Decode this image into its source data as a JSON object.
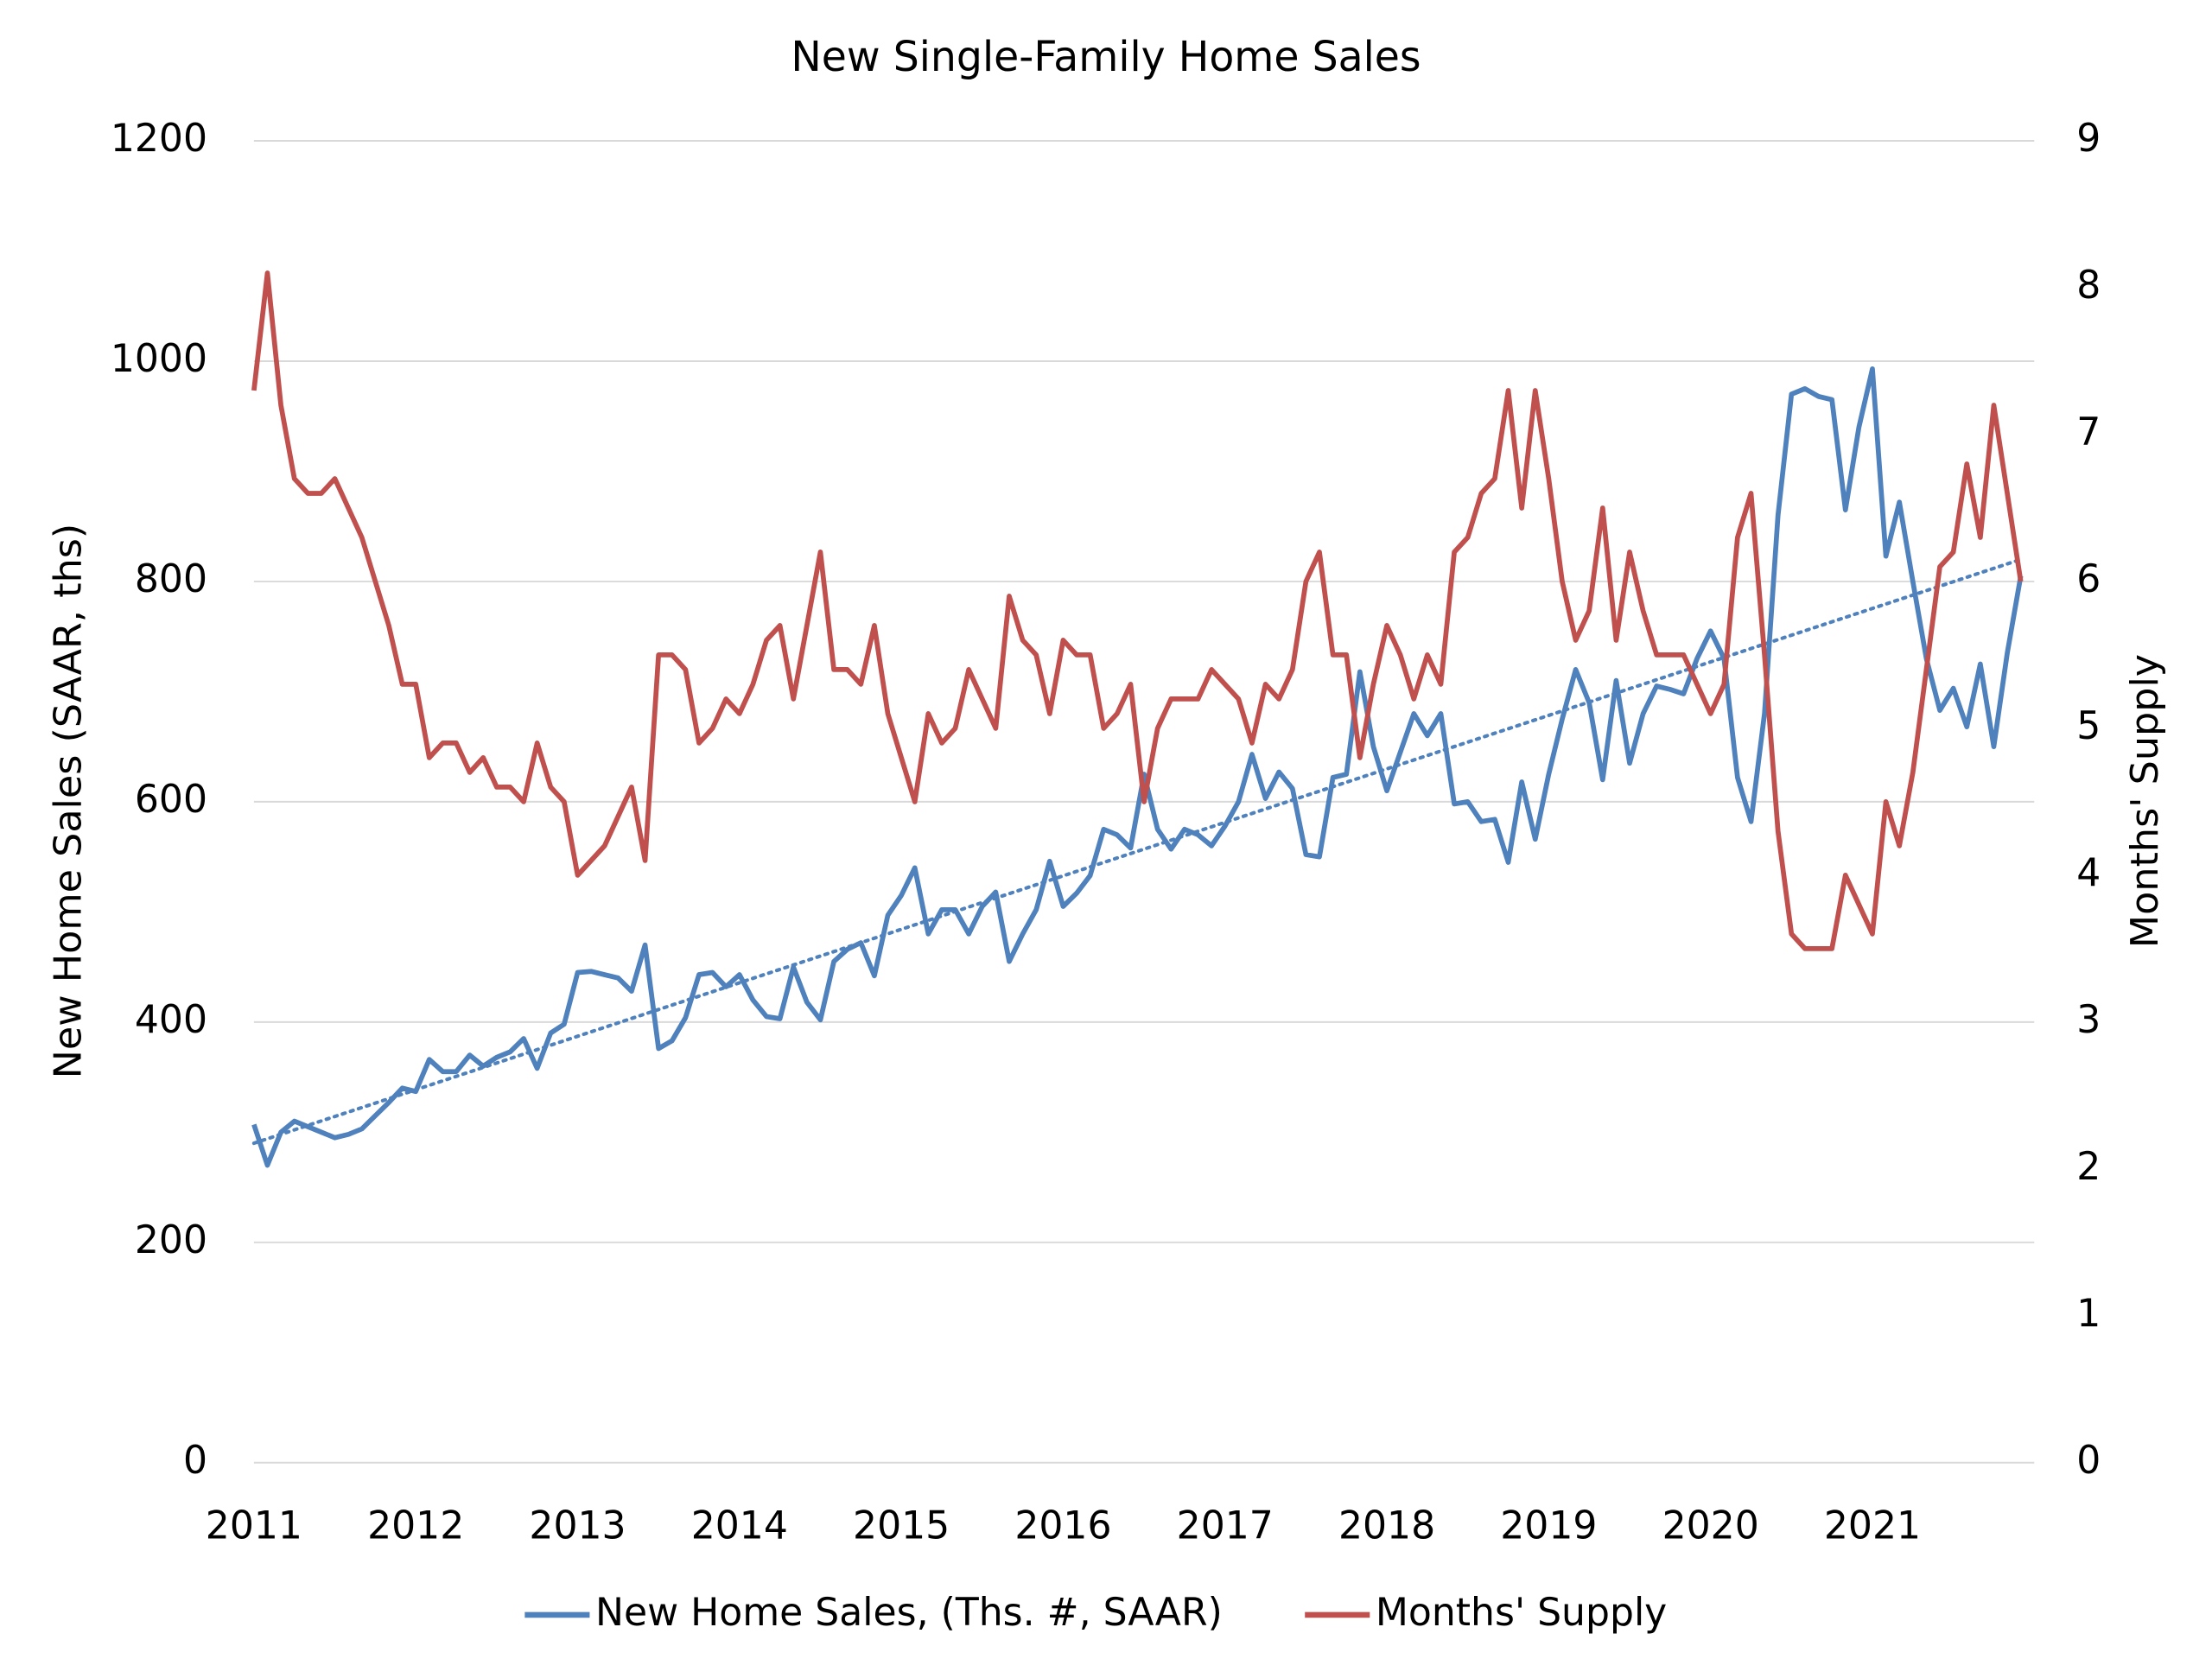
{
  "chart_data": {
    "type": "line",
    "title": "New Single-Family Home Sales",
    "ylabel": "New Home Sales (SAAR, ths)",
    "y2label": "Months' Supply",
    "categories": [
      "2011",
      null,
      null,
      null,
      null,
      null,
      null,
      null,
      null,
      null,
      null,
      null,
      "2012",
      null,
      null,
      null,
      null,
      null,
      null,
      null,
      null,
      null,
      null,
      null,
      "2013",
      null,
      null,
      null,
      null,
      null,
      null,
      null,
      null,
      null,
      null,
      null,
      "2014",
      null,
      null,
      null,
      null,
      null,
      null,
      null,
      null,
      null,
      null,
      null,
      "2015",
      null,
      null,
      null,
      null,
      null,
      null,
      null,
      null,
      null,
      null,
      null,
      "2016",
      null,
      null,
      null,
      null,
      null,
      null,
      null,
      null,
      null,
      null,
      null,
      "2017",
      null,
      null,
      null,
      null,
      null,
      null,
      null,
      null,
      null,
      null,
      null,
      "2018",
      null,
      null,
      null,
      null,
      null,
      null,
      null,
      null,
      null,
      null,
      null,
      "2019",
      null,
      null,
      null,
      null,
      null,
      null,
      null,
      null,
      null,
      null,
      null,
      "2020",
      null,
      null,
      null,
      null,
      null,
      null,
      null,
      null,
      null,
      null,
      null,
      "2021",
      null,
      null,
      null,
      null,
      null,
      null,
      null,
      null,
      null,
      null,
      null
    ],
    "series": [
      {
        "name": "New Home Sales, (Ths. #, SAAR)",
        "color": "#4f81bd",
        "axis": "y",
        "values": [
          307,
          270,
          300,
          310,
          305,
          300,
          295,
          298,
          303,
          315,
          327,
          340,
          337,
          366,
          355,
          355,
          370,
          360,
          368,
          373,
          385,
          358,
          390,
          398,
          445,
          446,
          443,
          440,
          428,
          470,
          376,
          383,
          404,
          443,
          445,
          432,
          443,
          420,
          405,
          403,
          450,
          418,
          402,
          455,
          466,
          472,
          442,
          497,
          515,
          540,
          480,
          502,
          502,
          480,
          505,
          518,
          455,
          480,
          502,
          546,
          505,
          517,
          533,
          575,
          570,
          558,
          625,
          575,
          557,
          575,
          570,
          560,
          578,
          600,
          643,
          603,
          627,
          612,
          552,
          550,
          622,
          625,
          718,
          650,
          610,
          645,
          680,
          660,
          680,
          598,
          600,
          582,
          584,
          545,
          618,
          566,
          625,
          675,
          720,
          690,
          620,
          710,
          635,
          680,
          705,
          702,
          698,
          730,
          755,
          730,
          622,
          582,
          680,
          860,
          970,
          975,
          968,
          965,
          865,
          940,
          993,
          823,
          872,
          800,
          730,
          683,
          703,
          668,
          725,
          650,
          735,
          805
        ]
      },
      {
        "name": "Months' Supply",
        "color": "#c0504d",
        "axis": "y2",
        "values": [
          7.3,
          8.1,
          7.2,
          6.7,
          6.6,
          6.6,
          6.7,
          6.5,
          6.3,
          6.0,
          5.7,
          5.3,
          5.3,
          4.8,
          4.9,
          4.9,
          4.7,
          4.8,
          4.6,
          4.6,
          4.5,
          4.9,
          4.6,
          4.5,
          4.0,
          4.1,
          4.2,
          4.4,
          4.6,
          4.1,
          5.5,
          5.5,
          5.4,
          4.9,
          5.0,
          5.2,
          5.1,
          5.3,
          5.6,
          5.7,
          5.2,
          5.7,
          6.2,
          5.4,
          5.4,
          5.3,
          5.7,
          5.1,
          4.8,
          4.5,
          5.1,
          4.9,
          5.0,
          5.4,
          5.2,
          5.0,
          5.9,
          5.6,
          5.5,
          5.1,
          5.6,
          5.5,
          5.5,
          5.0,
          5.1,
          5.3,
          4.5,
          5.0,
          5.2,
          5.2,
          5.2,
          5.4,
          5.3,
          5.2,
          4.9,
          5.3,
          5.2,
          5.4,
          6.0,
          6.2,
          5.5,
          5.5,
          4.8,
          5.3,
          5.7,
          5.5,
          5.2,
          5.5,
          5.3,
          6.2,
          6.3,
          6.6,
          6.7,
          7.3,
          6.5,
          7.3,
          6.7,
          6.0,
          5.6,
          5.8,
          6.5,
          5.6,
          6.2,
          5.8,
          5.5,
          5.5,
          5.5,
          5.3,
          5.1,
          5.3,
          6.3,
          6.6,
          5.5,
          4.3,
          3.6,
          3.5,
          3.5,
          3.5,
          4.0,
          3.8,
          3.6,
          4.5,
          4.2,
          4.7,
          5.4,
          6.1,
          6.2,
          6.8,
          6.3,
          7.2,
          6.6,
          6.0
        ]
      }
    ],
    "trendline": {
      "values": [
        290,
        820
      ],
      "color": "#4f81bd"
    },
    "ylim": [
      0,
      1200
    ],
    "yticks": [
      0,
      200,
      400,
      600,
      800,
      1000,
      1200
    ],
    "y2lim": [
      0,
      9
    ],
    "y2ticks": [
      0,
      1,
      2,
      3,
      4,
      5,
      6,
      7,
      8,
      9
    ],
    "grid": true,
    "legend": "bottom"
  }
}
